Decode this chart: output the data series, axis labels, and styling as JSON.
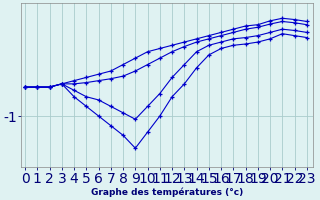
{
  "xlabel": "Graphe des températures (°c)",
  "hours": [
    0,
    1,
    2,
    3,
    4,
    5,
    6,
    7,
    8,
    9,
    10,
    11,
    12,
    13,
    14,
    15,
    16,
    17,
    18,
    19,
    20,
    21,
    22,
    23
  ],
  "line1": [
    -0.55,
    -0.55,
    -0.55,
    -0.5,
    -0.45,
    -0.4,
    -0.35,
    -0.3,
    -0.2,
    -0.1,
    0.0,
    0.05,
    0.1,
    0.15,
    0.2,
    0.25,
    0.3,
    0.35,
    0.4,
    0.42,
    0.48,
    0.52,
    0.5,
    0.47
  ],
  "line2": [
    -0.55,
    -0.55,
    -0.55,
    -0.5,
    -0.5,
    -0.48,
    -0.45,
    -0.42,
    -0.38,
    -0.3,
    -0.2,
    -0.1,
    0.0,
    0.08,
    0.15,
    0.2,
    0.25,
    0.3,
    0.35,
    0.38,
    0.43,
    0.47,
    0.45,
    0.42
  ],
  "line3": [
    -0.55,
    -0.55,
    -0.55,
    -0.5,
    -0.6,
    -0.7,
    -0.75,
    -0.85,
    -0.95,
    -1.05,
    -0.85,
    -0.65,
    -0.4,
    -0.2,
    0.0,
    0.1,
    0.15,
    0.2,
    0.22,
    0.25,
    0.3,
    0.35,
    0.33,
    0.3
  ],
  "line4": [
    -0.55,
    -0.55,
    -0.55,
    -0.5,
    -0.7,
    -0.85,
    -1.0,
    -1.15,
    -1.3,
    -1.5,
    -1.25,
    -1.0,
    -0.7,
    -0.5,
    -0.25,
    -0.05,
    0.05,
    0.1,
    0.12,
    0.15,
    0.2,
    0.28,
    0.25,
    0.22
  ],
  "bg_color": "#dff2f2",
  "line_color": "#0000cc",
  "grid_color": "#aacccc",
  "yticks": [
    -1
  ],
  "ylim": [
    -1.8,
    0.75
  ],
  "xlim": [
    -0.3,
    23.5
  ],
  "figsize": [
    3.2,
    2.0
  ],
  "dpi": 100
}
